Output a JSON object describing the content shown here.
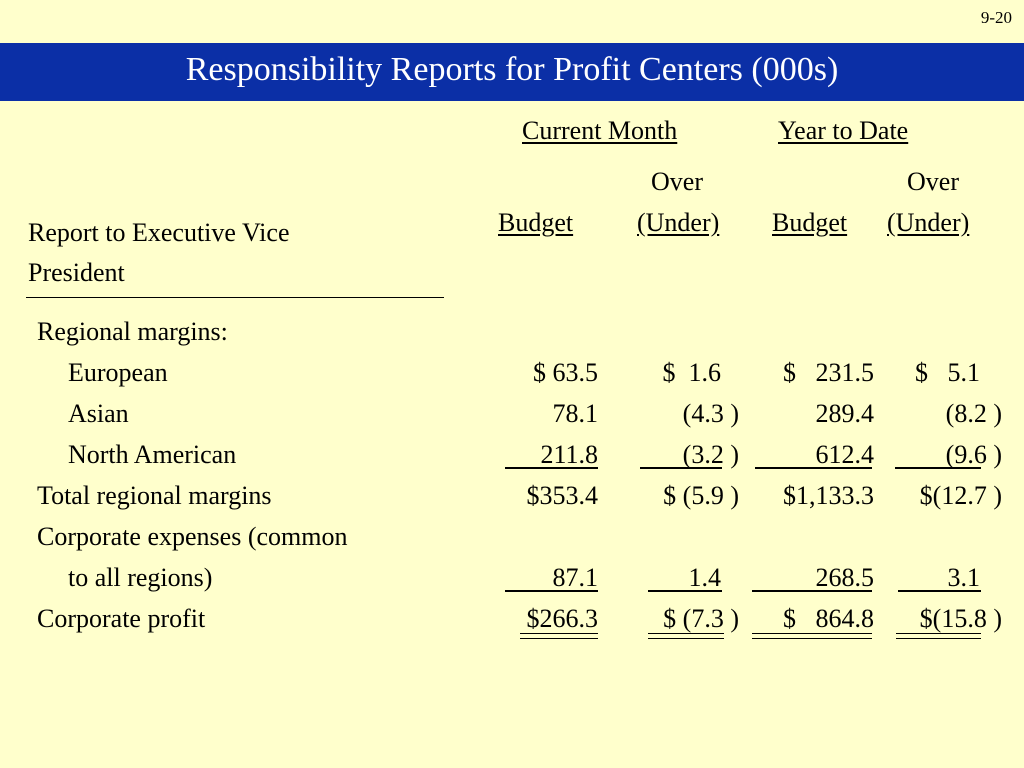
{
  "slide_number": "9-20",
  "title": "Responsibility Reports for Profit Centers (000s)",
  "headers": {
    "current_month": "Current Month",
    "year_to_date": "Year to Date",
    "over1": "Over",
    "over2": "Over",
    "budget1": "Budget",
    "under1": "(Under)",
    "budget2": "Budget",
    "under2": "(Under)",
    "report_line1": "Report to Executive Vice",
    "report_line2": "President"
  },
  "rows": [
    {
      "label": "Regional margins:",
      "cm_budget": "",
      "cm_over": "",
      "ytd_budget": "",
      "ytd_over": ""
    },
    {
      "label": "European",
      "cm_budget": "$ 63.5",
      "cm_over": "$  1.6",
      "ytd_budget": "$   231.5",
      "ytd_over": "$   5.1"
    },
    {
      "label": "Asian",
      "cm_budget": "78.1",
      "cm_over": "(4.3 )",
      "ytd_budget": "289.4",
      "ytd_over": "(8.2 )"
    },
    {
      "label": "North American",
      "cm_budget": "211.8",
      "cm_over": "(3.2 )",
      "ytd_budget": "612.4",
      "ytd_over": "(9.6 )"
    },
    {
      "label": "Total regional margins",
      "cm_budget": "$353.4",
      "cm_over": "$ (5.9 )",
      "ytd_budget": "$1,133.3",
      "ytd_over": "$(12.7 )"
    },
    {
      "label": "Corporate expenses (common",
      "cm_budget": "",
      "cm_over": "",
      "ytd_budget": "",
      "ytd_over": ""
    },
    {
      "label": "to all regions)",
      "cm_budget": "87.1",
      "cm_over": "1.4",
      "ytd_budget": "268.5",
      "ytd_over": "3.1"
    },
    {
      "label": "Corporate profit",
      "cm_budget": "$266.3",
      "cm_over": "$ (7.3 )",
      "ytd_budget": "$   864.8",
      "ytd_over": "$(15.8 )"
    }
  ]
}
